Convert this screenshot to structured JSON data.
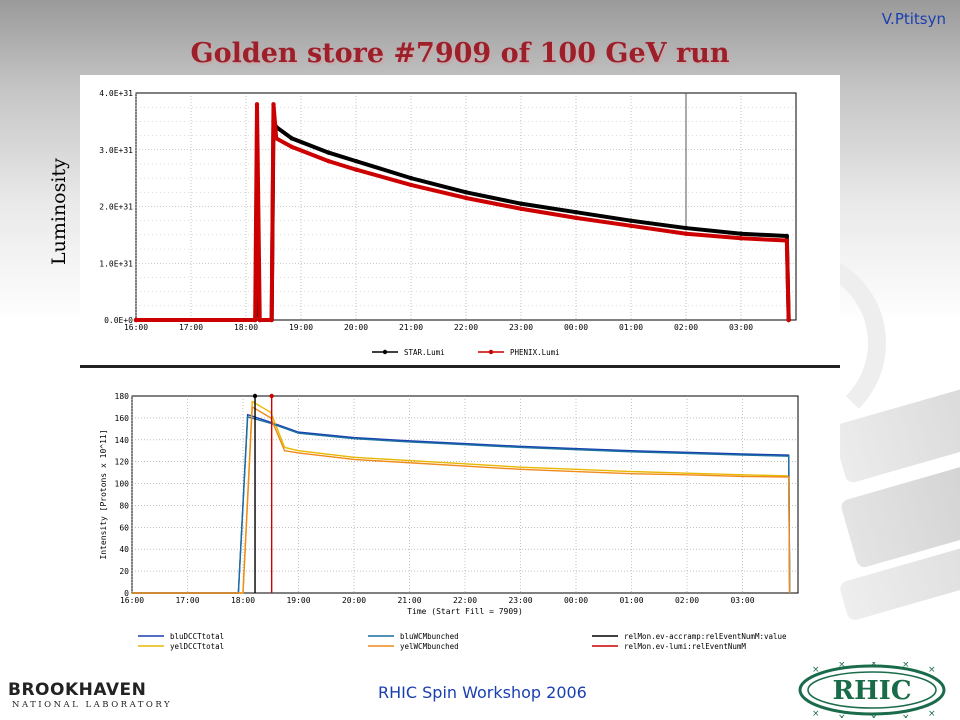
{
  "author": "V.Ptitsyn",
  "title": "Golden store #7909 of 100 GeV run",
  "footer": "RHIC Spin  Workshop 2006",
  "logos": {
    "bnl_line1": "BROOKHAVEN",
    "bnl_line2": "NATIONAL LABORATORY",
    "rhic": "RHIC"
  },
  "chart_data": [
    {
      "type": "line",
      "ylabel": "Luminosity",
      "xlabel": "",
      "x_ticks": [
        "16:00",
        "17:00",
        "18:00",
        "19:00",
        "20:00",
        "21:00",
        "22:00",
        "23:00",
        "00:00",
        "01:00",
        "02:00",
        "03:00"
      ],
      "y_ticks": [
        "0.0E+0",
        "1.0E+31",
        "2.0E+31",
        "3.0E+31",
        "4.0E+31"
      ],
      "ylim": [
        0,
        4e+31
      ],
      "grid": true,
      "legend_position": "bottom",
      "series": [
        {
          "name": "STAR.Lumi",
          "color": "#000000",
          "points": [
            [
              "16:00",
              0
            ],
            [
              "18:10",
              0
            ],
            [
              "18:12",
              6e+30
            ],
            [
              "18:15",
              0
            ],
            [
              "18:28",
              0
            ],
            [
              "18:30",
              3.5e+31
            ],
            [
              "18:33",
              3.4e+31
            ],
            [
              "18:50",
              3.2e+31
            ],
            [
              "19:30",
              2.95e+31
            ],
            [
              "20:00",
              2.8e+31
            ],
            [
              "21:00",
              2.5e+31
            ],
            [
              "22:00",
              2.25e+31
            ],
            [
              "23:00",
              2.05e+31
            ],
            [
              "00:00",
              1.9e+31
            ],
            [
              "01:00",
              1.75e+31
            ],
            [
              "02:00",
              1.62e+31
            ],
            [
              "03:00",
              1.52e+31
            ],
            [
              "03:50",
              1.48e+31
            ],
            [
              "03:52",
              0
            ]
          ]
        },
        {
          "name": "PHENIX.Lumi",
          "color": "#cc0000",
          "points": [
            [
              "16:00",
              0
            ],
            [
              "18:10",
              0
            ],
            [
              "18:12",
              3.8e+31
            ],
            [
              "18:15",
              0
            ],
            [
              "18:28",
              0
            ],
            [
              "18:30",
              3.8e+31
            ],
            [
              "18:33",
              3.2e+31
            ],
            [
              "18:50",
              3.05e+31
            ],
            [
              "19:30",
              2.8e+31
            ],
            [
              "20:00",
              2.65e+31
            ],
            [
              "21:00",
              2.38e+31
            ],
            [
              "22:00",
              2.15e+31
            ],
            [
              "23:00",
              1.96e+31
            ],
            [
              "00:00",
              1.8e+31
            ],
            [
              "01:00",
              1.66e+31
            ],
            [
              "02:00",
              1.52e+31
            ],
            [
              "03:00",
              1.44e+31
            ],
            [
              "03:50",
              1.4e+31
            ],
            [
              "03:52",
              0
            ]
          ]
        }
      ]
    },
    {
      "type": "line",
      "xlabel": "Time (Start Fill = 7909)",
      "ylabel": "Intensity [Protons x 10^11]",
      "x_ticks": [
        "16:00",
        "17:00",
        "18:00",
        "19:00",
        "20:00",
        "21:00",
        "22:00",
        "23:00",
        "00:00",
        "01:00",
        "02:00",
        "03:00"
      ],
      "y_ticks": [
        "0",
        "20",
        "40",
        "60",
        "80",
        "100",
        "120",
        "140",
        "160",
        "180"
      ],
      "ylim": [
        0,
        180
      ],
      "grid": true,
      "legend_position": "bottom",
      "series": [
        {
          "name": "bluDCCTtotal",
          "color": "#1a3fb0",
          "points": [
            [
              "16:00",
              0
            ],
            [
              "17:55",
              0
            ],
            [
              "18:05",
              163
            ],
            [
              "18:30",
              156
            ],
            [
              "19:00",
              147
            ],
            [
              "20:00",
              142
            ],
            [
              "21:00",
              139
            ],
            [
              "22:00",
              136.5
            ],
            [
              "23:00",
              134
            ],
            [
              "00:00",
              132
            ],
            [
              "01:00",
              130
            ],
            [
              "02:00",
              128.5
            ],
            [
              "03:00",
              127
            ],
            [
              "03:50",
              126
            ],
            [
              "03:51",
              0
            ]
          ]
        },
        {
          "name": "yelDCCTtotal",
          "color": "#e8b800",
          "points": [
            [
              "16:00",
              0
            ],
            [
              "18:00",
              0
            ],
            [
              "18:10",
              175
            ],
            [
              "18:30",
              165
            ],
            [
              "18:45",
              133
            ],
            [
              "19:00",
              130
            ],
            [
              "20:00",
              124
            ],
            [
              "21:00",
              121
            ],
            [
              "22:00",
              118
            ],
            [
              "23:00",
              115
            ],
            [
              "00:00",
              113
            ],
            [
              "01:00",
              111
            ],
            [
              "02:00",
              109.5
            ],
            [
              "03:00",
              108
            ],
            [
              "03:50",
              107
            ],
            [
              "03:51",
              0
            ]
          ]
        },
        {
          "name": "bluWCMbunched",
          "color": "#1a6fa0",
          "points": [
            [
              "16:00",
              0
            ],
            [
              "17:55",
              0
            ],
            [
              "18:05",
              161
            ],
            [
              "18:30",
              155
            ],
            [
              "19:00",
              146
            ],
            [
              "20:00",
              141
            ],
            [
              "21:00",
              138
            ],
            [
              "22:00",
              135.5
            ],
            [
              "23:00",
              133
            ],
            [
              "00:00",
              131
            ],
            [
              "01:00",
              129
            ],
            [
              "02:00",
              127.5
            ],
            [
              "03:00",
              126
            ],
            [
              "03:50",
              125
            ],
            [
              "03:51",
              0
            ]
          ]
        },
        {
          "name": "yelWCMbunched",
          "color": "#f08a1a",
          "points": [
            [
              "16:00",
              0
            ],
            [
              "18:00",
              0
            ],
            [
              "18:10",
              170
            ],
            [
              "18:30",
              160
            ],
            [
              "18:45",
              130
            ],
            [
              "19:00",
              128
            ],
            [
              "20:00",
              122
            ],
            [
              "21:00",
              119
            ],
            [
              "22:00",
              116
            ],
            [
              "23:00",
              113
            ],
            [
              "00:00",
              111
            ],
            [
              "01:00",
              109
            ],
            [
              "02:00",
              108
            ],
            [
              "03:00",
              106.5
            ],
            [
              "03:50",
              106
            ],
            [
              "03:51",
              0
            ]
          ]
        },
        {
          "name": "relMon.ev-accramp:relEventNumM:value",
          "color": "#000000",
          "points": [
            [
              "18:13",
              0
            ],
            [
              "18:13",
              180
            ]
          ]
        },
        {
          "name": "relMon.ev-lumi:relEventNumM",
          "color": "#cc0000",
          "points": [
            [
              "18:31",
              0
            ],
            [
              "18:31",
              180
            ]
          ]
        }
      ]
    }
  ]
}
